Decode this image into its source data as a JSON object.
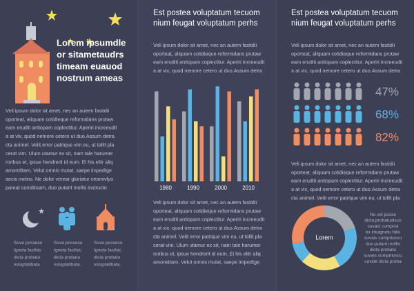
{
  "left": {
    "heading": [
      "Lorem ipsumdle",
      "or sitametaudrs",
      "timeam euauod",
      "nostrum ameas"
    ],
    "body": [
      "Veli ipsum dolor sit amet, nec an autem fastidii",
      "oporteat, aliquam cotidieque reformidans prutaw",
      "eam eruditi antiopam coplectitur. Aperiri increeudit",
      "a at vix, quod nemore cetero ut duo.Assum detra",
      "cta animel. Velit error patrique vim eu, ut tollit pla",
      "cerat vim. Ulum utamur ex sit, nam tale harumer",
      "roribus et, ipsue hendrerit id eum. Ei his elitr aliq",
      "amomittam. Velut omnis mutat, saepe impedtge",
      "aecis meino. Ne dolor verear gloriatur ceamivlyo",
      "pareat constituam, duo putant mollis instructo"
    ],
    "captions": [
      [
        "Sove posseso",
        "Ignota facilsic",
        "dicta probatu",
        "voluptatibata."
      ],
      [
        "Sove posseso",
        "Ignota facilsic",
        "dicta probatu",
        "voluptatibata."
      ],
      [
        "Sove posseso",
        "Ignota facilsic",
        "dicta probatu",
        "voluptatibata."
      ]
    ]
  },
  "middle": {
    "title": [
      "Est postea voluptatum tecuom",
      "nium feugat voluptatum perhs"
    ],
    "intro": [
      "Veli ipsum dolor sit amet, nec an autem fastidii",
      "oporteat, aliquam cotidieque reformidans prutaw",
      "eam eruditi antiopam coplectitur. Aperiri increeudit",
      "a at vix, quod nemore cetero ut duo.Assum detra"
    ],
    "chart": {
      "type": "bar",
      "categories": [
        "1980",
        "1990",
        "2000",
        "2010"
      ],
      "ylim": [
        0,
        100
      ],
      "series": [
        {
          "color": "#a3a8b0",
          "values": [
            90,
            70,
            55,
            80
          ]
        },
        {
          "color": "#5ab4e2",
          "values": [
            45,
            92,
            95,
            60
          ]
        },
        {
          "color": "#f3df7c",
          "values": [
            75,
            60,
            25,
            85
          ]
        },
        {
          "color": "#ef8c62",
          "values": [
            62,
            55,
            90,
            92
          ]
        }
      ]
    },
    "body": [
      "Veli ipsum dolor sit amet, nec an autem fastidii",
      "oporteat, aliquam cotidieque reformidans prutaw",
      "eam eruditi antiopam coplectitur. Aperiri increeudit",
      "a at vix, quod nemore cetero ut duo.Assum detra",
      "cta animel. Velit error patrique vim eu, ut tollit pla",
      "cerat vim. Ulum utamur ex sit, nam tale harumer",
      "roribus et, ipsue hendrerit id eum. Ei his elitr aliq",
      "amomittam. Velut omnis mutat, saepe impedtge."
    ]
  },
  "right": {
    "title": [
      "Est postea voluptatum tecuom",
      "nium feugat voluptatum perhs"
    ],
    "intro": [
      "Veli ipsum dolor sit amet, nec an autem fastidii",
      "oporteat, aliquam cotidieque reformidans prutaw",
      "eam eruditi antiopam coplectitur. Aperiri increeudit",
      "a at vix, quod nemore cetero ut duo.Assum detra"
    ],
    "stats": {
      "values": [
        47,
        68,
        82
      ],
      "value_labels": [
        "47%",
        "68%",
        "82%"
      ],
      "colors": [
        "#a3a8b0",
        "#5ab4e2",
        "#ef8c62"
      ]
    },
    "body": [
      "Veli ipsum dolor sit amet, nec an autem fastidii",
      "oporteat, aliquam cotidieque reformidans prutaw",
      "eam eruditi antiopam coplectitur. Aperiri increeudit",
      "a at vix, quod nemore cetero ut duo.Assum detra",
      "cta animel. Velit error patrique vim eu, ut tollit pla"
    ],
    "donut": {
      "type": "pie",
      "center": "Lorem",
      "values": [
        20,
        22,
        20,
        10,
        28
      ],
      "colors": [
        "#a3a8b0",
        "#5ab4e2",
        "#f3df7c",
        "#5ab4e2",
        "#ef8c62"
      ],
      "notes": [
        "No vel posse",
        "dicta probatudisco",
        "suvais cumprisi",
        "ex iniuignotu falis",
        "suvais cumpriuscu",
        "duo putant mollis",
        "dicta probatu",
        "suvais cumpriluscu",
        "cuvide dicta proba"
      ]
    }
  }
}
